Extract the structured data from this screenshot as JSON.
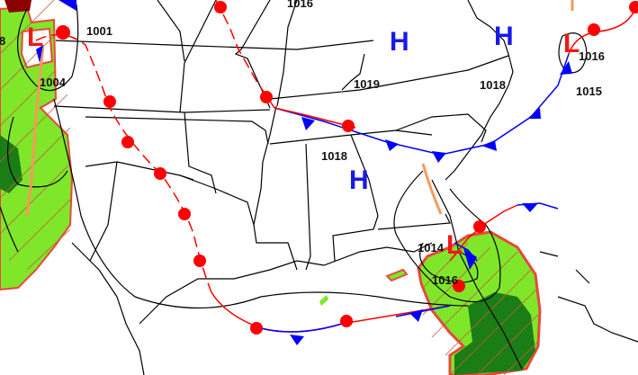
{
  "colors": {
    "high": "#1a1ae6",
    "low": "#f01818",
    "warm_front": "#ff0000",
    "cold_front": "#0000ff",
    "trough": "#f49a5c",
    "precip_light": "#7fe62a",
    "precip_heavy": "#1b7d16",
    "precip_outline": "#e8483a",
    "borders": "#000000"
  },
  "pressure_systems": [
    {
      "type": "low",
      "symbol": "L"
    },
    {
      "type": "low",
      "symbol": "L"
    },
    {
      "type": "low",
      "symbol": "L"
    },
    {
      "type": "high",
      "symbol": "H"
    },
    {
      "type": "high",
      "symbol": "H"
    },
    {
      "type": "high",
      "symbol": "H"
    }
  ],
  "isobar_labels": [
    "8",
    "1001",
    "1004",
    "1016",
    "1019",
    "1018",
    "1018",
    "1016",
    "1015",
    "1014",
    "1016"
  ]
}
